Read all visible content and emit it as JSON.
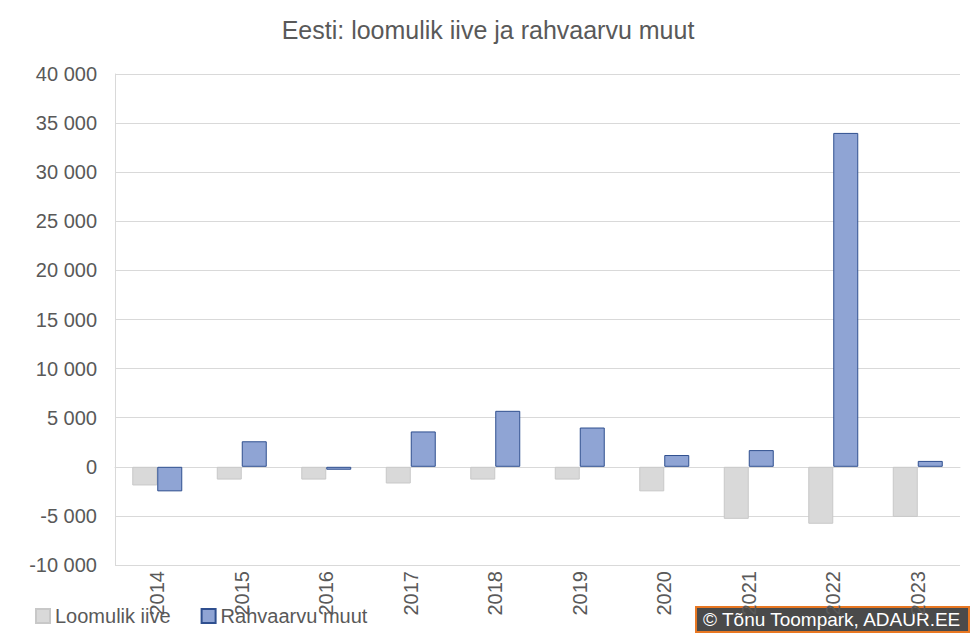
{
  "chart_data": {
    "type": "bar",
    "title": "Eesti: loomulik iive ja rahvaarvu muut",
    "categories": [
      "2014",
      "2015",
      "2016",
      "2017",
      "2018",
      "2019",
      "2020",
      "2021",
      "2022",
      "2023"
    ],
    "series": [
      {
        "name": "Loomulik iive",
        "color": "#d9d9d9",
        "values": [
          -1900,
          -1300,
          -1300,
          -1700,
          -1300,
          -1300,
          -2500,
          -5300,
          -5800,
          -5100
        ]
      },
      {
        "name": "Rahvaarvu muut",
        "color": "#8fa4d4",
        "values": [
          -2500,
          2600,
          -300,
          3600,
          5700,
          4000,
          1200,
          1700,
          34000,
          600
        ]
      }
    ],
    "ylim": [
      -10000,
      40000
    ],
    "yticks": [
      {
        "value": -10000,
        "label": "-10 000"
      },
      {
        "value": -5000,
        "label": "-5 000"
      },
      0,
      {
        "value": 5000,
        "label": "5 000"
      },
      {
        "value": 10000,
        "label": "10 000"
      },
      {
        "value": 15000,
        "label": "15 000"
      },
      {
        "value": 20000,
        "label": "20 000"
      },
      {
        "value": 25000,
        "label": "25 000"
      },
      {
        "value": 30000,
        "label": "30 000"
      },
      {
        "value": 35000,
        "label": "35 000"
      },
      {
        "value": 40000,
        "label": "40 000"
      }
    ],
    "grid": true,
    "legend": "bottom",
    "annotations": [
      "© Tõnu Toompark, ADAUR.EE"
    ]
  }
}
